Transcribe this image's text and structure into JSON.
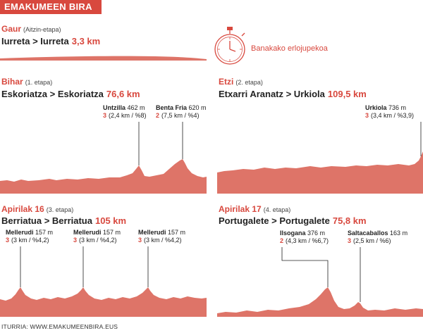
{
  "header": {
    "title": "EMAKUMEEN BIRA"
  },
  "colors": {
    "accent": "#d8483e",
    "profile": "#de7468"
  },
  "legend": {
    "label": "Banakako erlojupekoa",
    "icon": "stopwatch-icon"
  },
  "source": "ITURRIA: WWW.EMAKUMEENBIRA.EUS",
  "stages": [
    {
      "day": "Gaur",
      "etapa": "(Aitzin-etapa)",
      "route": "Iurreta > Iurreta",
      "km": "3,3 km",
      "climbs": []
    },
    {
      "day": "Bihar",
      "etapa": "(1. etapa)",
      "route": "Eskoriatza > Eskoriatza",
      "km": "76,6 km",
      "climbs": [
        {
          "name": "Untzilla",
          "alt": "462 m",
          "cat": "3",
          "detail": "(2,4 km / %8)"
        },
        {
          "name": "Benta Fria",
          "alt": "620 m",
          "cat": "2",
          "detail": "(7,5 km / %4)"
        }
      ]
    },
    {
      "day": "Etzi",
      "etapa": "(2. etapa)",
      "route": "Etxarri Aranatz > Urkiola",
      "km": "109,5 km",
      "climbs": [
        {
          "name": "Urkiola",
          "alt": "736 m",
          "cat": "3",
          "detail": "(3,4 km / %3,9)"
        }
      ]
    },
    {
      "day": "Apirilak 16",
      "etapa": "(3. etapa)",
      "route": "Berriatua > Berriatua",
      "km": "105 km",
      "climbs": [
        {
          "name": "Mellerudi",
          "alt": "157 m",
          "cat": "3",
          "detail": "(3 km / %4,2)"
        },
        {
          "name": "Mellerudi",
          "alt": "157 m",
          "cat": "3",
          "detail": "(3 km / %4,2)"
        },
        {
          "name": "Mellerudi",
          "alt": "157 m",
          "cat": "3",
          "detail": "(3 km / %4,2)"
        }
      ]
    },
    {
      "day": "Apirilak 17",
      "etapa": "(4. etapa)",
      "route": "Portugalete > Portugalete",
      "km": "75,8 km",
      "climbs": [
        {
          "name": "Ilsogana",
          "alt": "376 m",
          "cat": "2",
          "detail": "(4,3 km / %6,7)"
        },
        {
          "name": "Saltacaballos",
          "alt": "163 m",
          "cat": "3",
          "detail": "(2,5 km / %6)"
        }
      ]
    }
  ]
}
